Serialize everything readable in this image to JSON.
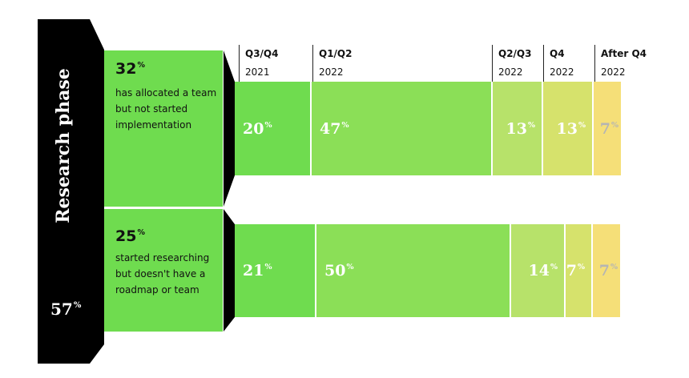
{
  "phase": {
    "title": "Research phase",
    "value": "57",
    "unit": "%"
  },
  "segments": [
    {
      "pct": "32",
      "unit": "%",
      "desc": "has allocated a team but not started implementation"
    },
    {
      "pct": "25",
      "unit": "%",
      "desc": "started researching but doesn't have a roadmap or team"
    }
  ],
  "columns": [
    {
      "top": "Q3/Q4",
      "bottom": "2021"
    },
    {
      "top": "Q1/Q2",
      "bottom": "2022"
    },
    {
      "top": "Q2/Q3",
      "bottom": "2022"
    },
    {
      "top": "Q4",
      "bottom": "2022"
    },
    {
      "top": "After Q4",
      "bottom": "2022"
    }
  ],
  "colors": {
    "phase_bg": "#000000",
    "segment_bg": "#6fdc4f",
    "cells": [
      "#6fdc4f",
      "#8bdf57",
      "#b7e26a",
      "#d6e26c",
      "#f5df78"
    ],
    "label_light": "#ffffff",
    "label_faded": "#b4b4b4"
  },
  "chart_data": {
    "type": "bar",
    "stacked": true,
    "orientation": "horizontal",
    "categories": [
      "32% has allocated a team but not started implementation",
      "25% started researching but doesn't have a roadmap or team"
    ],
    "series": [
      {
        "name": "Q3/Q4 2021",
        "values": [
          20,
          21
        ]
      },
      {
        "name": "Q1/Q2 2022",
        "values": [
          47,
          50
        ]
      },
      {
        "name": "Q2/Q3 2022",
        "values": [
          13,
          14
        ]
      },
      {
        "name": "Q4 2022",
        "values": [
          13,
          7
        ]
      },
      {
        "name": "After Q4 2022",
        "values": [
          7,
          7
        ]
      }
    ],
    "unit": "%"
  }
}
